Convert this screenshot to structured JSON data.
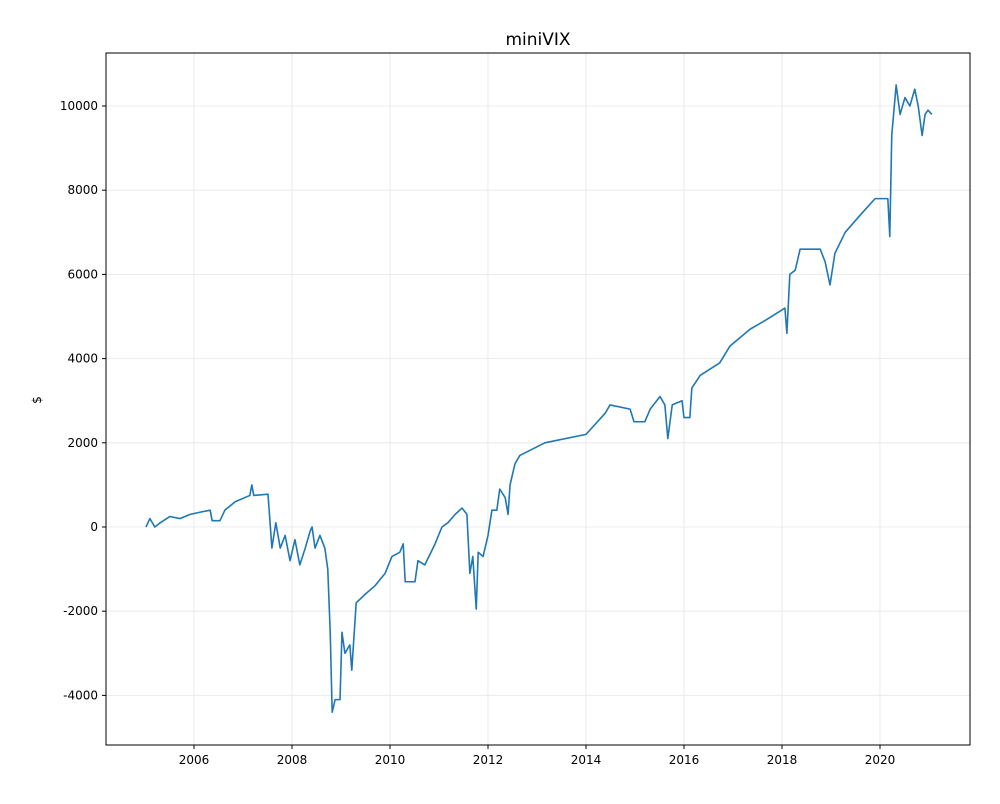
{
  "chart_data": {
    "type": "line",
    "title": "miniVIX",
    "ylabel": "$",
    "x": [
      2005.02,
      2005.1,
      2005.2,
      2005.31,
      2005.51,
      2005.71,
      2005.92,
      2006.12,
      2006.33,
      2006.37,
      2006.53,
      2006.63,
      2006.84,
      2007.14,
      2007.18,
      2007.22,
      2007.51,
      2007.59,
      2007.67,
      2007.76,
      2007.86,
      2007.96,
      2008.06,
      2008.16,
      2008.27,
      2008.37,
      2008.41,
      2008.47,
      2008.57,
      2008.67,
      2008.73,
      2008.78,
      2008.82,
      2008.88,
      2008.98,
      2009.02,
      2009.08,
      2009.18,
      2009.22,
      2009.31,
      2009.49,
      2009.69,
      2009.9,
      2010.04,
      2010.2,
      2010.27,
      2010.31,
      2010.51,
      2010.57,
      2010.71,
      2010.92,
      2011.06,
      2011.18,
      2011.33,
      2011.47,
      2011.57,
      2011.63,
      2011.69,
      2011.76,
      2011.8,
      2011.9,
      2012.0,
      2012.08,
      2012.18,
      2012.24,
      2012.35,
      2012.41,
      2012.45,
      2012.55,
      2012.65,
      2013.16,
      2014.0,
      2014.39,
      2014.49,
      2014.9,
      2014.98,
      2015.2,
      2015.31,
      2015.51,
      2015.61,
      2015.67,
      2015.76,
      2015.96,
      2016.0,
      2016.12,
      2016.16,
      2016.33,
      2016.73,
      2016.94,
      2017.35,
      2017.65,
      2018.06,
      2018.1,
      2018.16,
      2018.27,
      2018.37,
      2018.78,
      2018.88,
      2018.98,
      2019.08,
      2019.29,
      2019.59,
      2019.9,
      2020.16,
      2020.2,
      2020.24,
      2020.33,
      2020.41,
      2020.51,
      2020.61,
      2020.71,
      2020.78,
      2020.86,
      2020.92,
      2020.98,
      2021.06
    ],
    "series": [
      {
        "color": "#1f77b4",
        "values": [
          0,
          200,
          0,
          100,
          250,
          200,
          300,
          350,
          400,
          150,
          150,
          400,
          600,
          750,
          1000,
          750,
          780,
          -500,
          100,
          -500,
          -200,
          -800,
          -300,
          -900,
          -500,
          -100,
          0,
          -500,
          -200,
          -500,
          -1000,
          -2500,
          -4400,
          -4100,
          -4100,
          -2500,
          -3000,
          -2800,
          -3400,
          -1800,
          -1600,
          -1400,
          -1100,
          -700,
          -600,
          -400,
          -1300,
          -1300,
          -800,
          -900,
          -400,
          0,
          100,
          300,
          450,
          300,
          -1100,
          -700,
          -1950,
          -600,
          -700,
          -200,
          400,
          400,
          900,
          700,
          300,
          1000,
          1500,
          1700,
          2000,
          2200,
          2700,
          2900,
          2800,
          2500,
          2500,
          2800,
          3100,
          2900,
          2100,
          2900,
          3000,
          2600,
          2600,
          3300,
          3600,
          3900,
          4300,
          4700,
          4900,
          5200,
          4600,
          6000,
          6100,
          6600,
          6600,
          6300,
          5750,
          6500,
          7000,
          7400,
          7800,
          7800,
          6900,
          9300,
          10500,
          9800,
          10200,
          10000,
          10400,
          10000,
          9300,
          9800,
          9900,
          9800
        ]
      }
    ],
    "xlim": [
      2004.204,
      2021.837
    ],
    "xticks": [
      2006,
      2008,
      2010,
      2012,
      2014,
      2016,
      2018,
      2020
    ],
    "ylim": [
      -5178,
      11259
    ],
    "yticks": [
      -4000,
      -2000,
      0,
      2000,
      4000,
      6000,
      8000,
      10000
    ],
    "grid": true
  }
}
